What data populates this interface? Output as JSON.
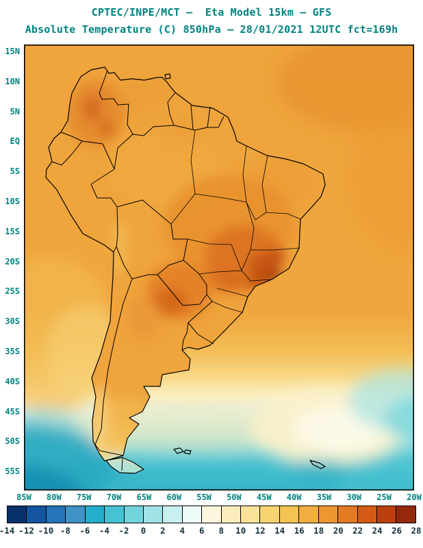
{
  "header": {
    "line1": "CPTEC/INPE/MCT —  Eta Model 15km — GFS",
    "line2": "Absolute Temperature (C) 850hPa — 28/01/2021 12UTC fct=169h"
  },
  "axes": {
    "lat_labels": [
      "15N",
      "10N",
      "5N",
      "EQ",
      "5S",
      "10S",
      "15S",
      "20S",
      "25S",
      "30S",
      "35S",
      "40S",
      "45S",
      "50S",
      "55S"
    ],
    "lon_labels": [
      "85W",
      "80W",
      "75W",
      "70W",
      "65W",
      "60W",
      "55W",
      "50W",
      "45W",
      "40W",
      "35W",
      "30W",
      "25W",
      "20W"
    ]
  },
  "colorbar": {
    "tick_labels": [
      "-14",
      "-12",
      "-10",
      "-8",
      "-6",
      "-4",
      "-2",
      "0",
      "2",
      "4",
      "6",
      "8",
      "10",
      "12",
      "14",
      "16",
      "18",
      "20",
      "22",
      "24",
      "26",
      "28"
    ],
    "colors": [
      "#08306B",
      "#1455A0",
      "#2474B7",
      "#3F93C7",
      "#23AECB",
      "#47C2D3",
      "#74D4DC",
      "#9FE3E7",
      "#C8F0F0",
      "#EFFBF6",
      "#FDF6DE",
      "#FBEDBB",
      "#FAE298",
      "#F8D372",
      "#F5C353",
      "#F2AF40",
      "#ED9730",
      "#E47A24",
      "#D55A17",
      "#BC400F",
      "#93290A"
    ]
  },
  "style": {
    "title_color": "#00827F",
    "axis_label_color": "#00827F",
    "colorbar_number_color": "#14323E",
    "frame_color": "#000000"
  }
}
